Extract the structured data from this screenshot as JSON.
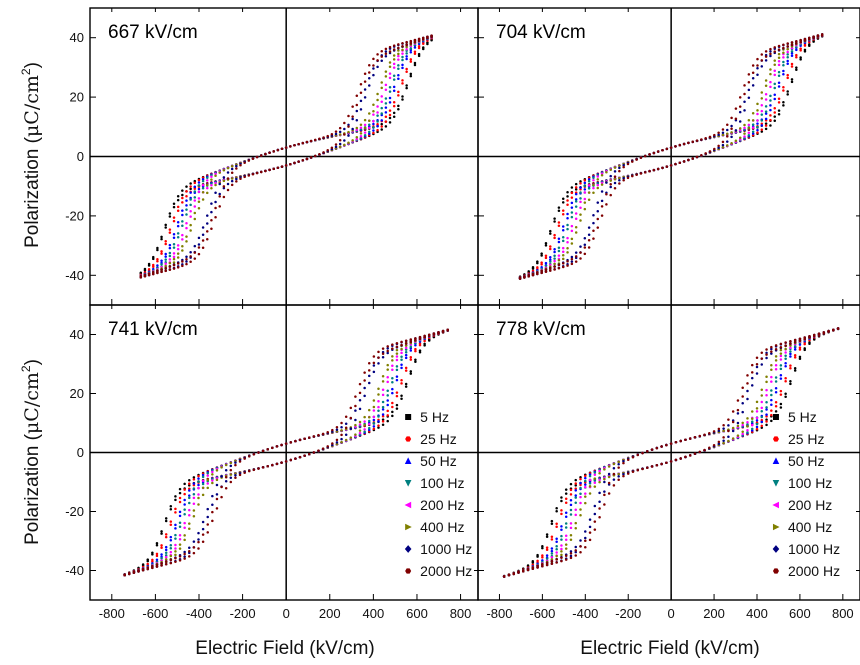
{
  "figure": {
    "xlabel": "Electric Field (kV/cm)",
    "ylabel_main": "Polarization (",
    "ylabel_greek": "μC/cm",
    "ylabel_sup": "2",
    "ylabel_close": ")"
  },
  "legend": {
    "entries": [
      "5 Hz",
      "25 Hz",
      "50 Hz",
      "100 Hz",
      "200 Hz",
      "400 Hz",
      "1000 Hz",
      "2000 Hz"
    ],
    "colors": [
      "#000000",
      "#ff0000",
      "#0000ff",
      "#008080",
      "#ff00ff",
      "#808000",
      "#000080",
      "#800000"
    ],
    "markers": [
      "square",
      "circle",
      "triangle-up",
      "triangle-down",
      "triangle-left",
      "triangle-right",
      "diamond",
      "hexagon"
    ]
  },
  "chart_data": [
    {
      "type": "scatter",
      "panel": "top-left",
      "label": "667 kV/cm",
      "emax": 667,
      "xlim": [
        -900,
        880
      ],
      "ylim": [
        -50,
        50
      ],
      "xticks": [
        "-800",
        "-600",
        "-400",
        "-200",
        "0",
        "200",
        "400",
        "600",
        "800"
      ],
      "yticks": [
        "-40",
        "-20",
        "0",
        "20",
        "40"
      ],
      "pmax": 42,
      "pr": 3,
      "series": [
        {
          "name": "5 Hz",
          "ec": 560
        },
        {
          "name": "25 Hz",
          "ec": 530
        },
        {
          "name": "50 Hz",
          "ec": 500
        },
        {
          "name": "100 Hz",
          "ec": 480
        },
        {
          "name": "200 Hz",
          "ec": 455
        },
        {
          "name": "400 Hz",
          "ec": 430
        },
        {
          "name": "1000 Hz",
          "ec": 360
        },
        {
          "name": "2000 Hz",
          "ec": 330
        }
      ],
      "show_legend": false
    },
    {
      "type": "scatter",
      "panel": "top-right",
      "label": "704 kV/cm",
      "emax": 704,
      "xlim": [
        -900,
        880
      ],
      "ylim": [
        -50,
        50
      ],
      "xticks": [
        "-800",
        "-600",
        "-400",
        "-200",
        "0",
        "200",
        "400",
        "600",
        "800"
      ],
      "yticks": [
        "-40",
        "-20",
        "0",
        "20",
        "40"
      ],
      "pmax": 42.5,
      "pr": 3,
      "series": [
        {
          "name": "5 Hz",
          "ec": 560
        },
        {
          "name": "25 Hz",
          "ec": 530
        },
        {
          "name": "50 Hz",
          "ec": 500
        },
        {
          "name": "100 Hz",
          "ec": 480
        },
        {
          "name": "200 Hz",
          "ec": 455
        },
        {
          "name": "400 Hz",
          "ec": 430
        },
        {
          "name": "1000 Hz",
          "ec": 360
        },
        {
          "name": "2000 Hz",
          "ec": 330
        }
      ],
      "show_legend": false
    },
    {
      "type": "scatter",
      "panel": "bottom-left",
      "label": "741 kV/cm",
      "emax": 741,
      "xlim": [
        -900,
        880
      ],
      "ylim": [
        -50,
        50
      ],
      "xticks": [
        "-800",
        "-600",
        "-400",
        "-200",
        "0",
        "200",
        "400",
        "600",
        "800"
      ],
      "yticks": [
        "-40",
        "-20",
        "0",
        "20",
        "40"
      ],
      "pmax": 43,
      "pr": 3,
      "series": [
        {
          "name": "5 Hz",
          "ec": 560
        },
        {
          "name": "25 Hz",
          "ec": 530
        },
        {
          "name": "50 Hz",
          "ec": 500
        },
        {
          "name": "100 Hz",
          "ec": 480
        },
        {
          "name": "200 Hz",
          "ec": 455
        },
        {
          "name": "400 Hz",
          "ec": 430
        },
        {
          "name": "1000 Hz",
          "ec": 360
        },
        {
          "name": "2000 Hz",
          "ec": 330
        }
      ],
      "show_legend": true
    },
    {
      "type": "scatter",
      "panel": "bottom-right",
      "label": "778 kV/cm",
      "emax": 778,
      "xlim": [
        -900,
        880
      ],
      "ylim": [
        -50,
        50
      ],
      "xticks": [
        "-800",
        "-600",
        "-400",
        "-200",
        "0",
        "200",
        "400",
        "600",
        "800"
      ],
      "yticks": [
        "-40",
        "-20",
        "0",
        "20",
        "40"
      ],
      "pmax": 43.5,
      "pr": 3,
      "series": [
        {
          "name": "5 Hz",
          "ec": 560
        },
        {
          "name": "25 Hz",
          "ec": 530
        },
        {
          "name": "50 Hz",
          "ec": 500
        },
        {
          "name": "100 Hz",
          "ec": 480
        },
        {
          "name": "200 Hz",
          "ec": 455
        },
        {
          "name": "400 Hz",
          "ec": 430
        },
        {
          "name": "1000 Hz",
          "ec": 360
        },
        {
          "name": "2000 Hz",
          "ec": 330
        }
      ],
      "show_legend": true
    }
  ]
}
